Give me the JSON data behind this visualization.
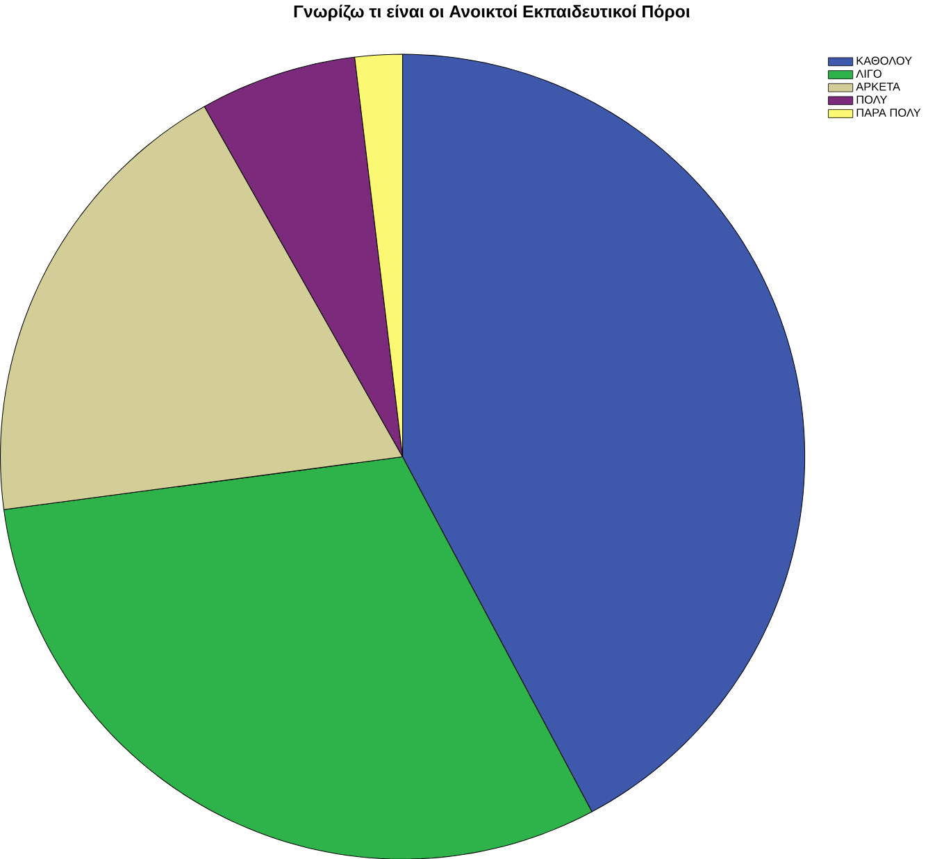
{
  "chart_data": {
    "type": "pie",
    "title": "Γνωρίζω τι είναι οι Ανοικτοί Εκπαιδευτικοί Πόροι",
    "categories": [
      "ΚΑΘΟΛΟΥ",
      "ΛΙΓΟ",
      "ΑΡΚΕΤΑ",
      "ΠΟΛΥ",
      "ΠΑΡΑ ΠΟΛΥ"
    ],
    "values": [
      42.2,
      30.7,
      18.9,
      6.3,
      1.9
    ],
    "colors": [
      "#3e58ac",
      "#2db34a",
      "#d3ce97",
      "#7b2a7c",
      "#fbf873"
    ],
    "legend": "top right"
  }
}
